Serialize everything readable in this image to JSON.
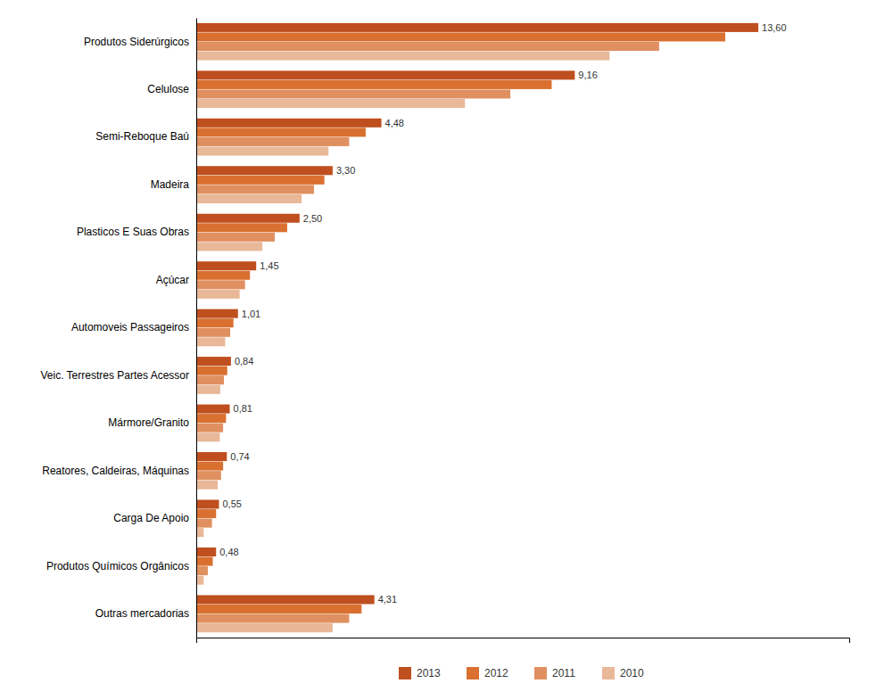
{
  "chart_data": {
    "type": "bar",
    "orientation": "horizontal",
    "categories": [
      "Produtos Siderúrgicos",
      "Celulose",
      "Semi-Reboque Baú",
      "Madeira",
      "Plasticos E Suas Obras",
      "Açúcar",
      "Automoveis Passageiros",
      "Veic. Terrestres Partes Acessor",
      "Mármore/Granito",
      "Reatores, Caldeiras, Máquinas",
      "Carga De Apoio",
      "Produtos Químicos Orgânicos",
      "Outras mercadorias"
    ],
    "series": [
      {
        "name": "2013",
        "color": "#bf4f1f",
        "values": [
          13.6,
          9.16,
          4.48,
          3.3,
          2.5,
          1.45,
          1.01,
          0.84,
          0.81,
          0.74,
          0.55,
          0.48,
          4.31
        ],
        "value_labels": [
          "13,60",
          "9,16",
          "4,48",
          "3,30",
          "2,50",
          "1,45",
          "1,01",
          "0,84",
          "0,81",
          "0,74",
          "0,55",
          "0,48",
          "4,31"
        ]
      },
      {
        "name": "2012",
        "color": "#d97030",
        "values": [
          12.8,
          8.6,
          4.1,
          3.1,
          2.2,
          1.3,
          0.9,
          0.75,
          0.72,
          0.65,
          0.48,
          0.4,
          4.0
        ]
      },
      {
        "name": "2011",
        "color": "#e09060",
        "values": [
          11.2,
          7.6,
          3.7,
          2.85,
          1.9,
          1.18,
          0.82,
          0.67,
          0.65,
          0.6,
          0.38,
          0.28,
          3.7
        ]
      },
      {
        "name": "2010",
        "color": "#e8b898",
        "values": [
          10.0,
          6.5,
          3.2,
          2.55,
          1.6,
          1.05,
          0.7,
          0.58,
          0.57,
          0.52,
          0.18,
          0.18,
          3.3
        ]
      }
    ],
    "xlim": [
      0,
      15.8
    ],
    "xticks": [],
    "tick_labels": "y",
    "data_labels": true,
    "legend": "bottom"
  }
}
